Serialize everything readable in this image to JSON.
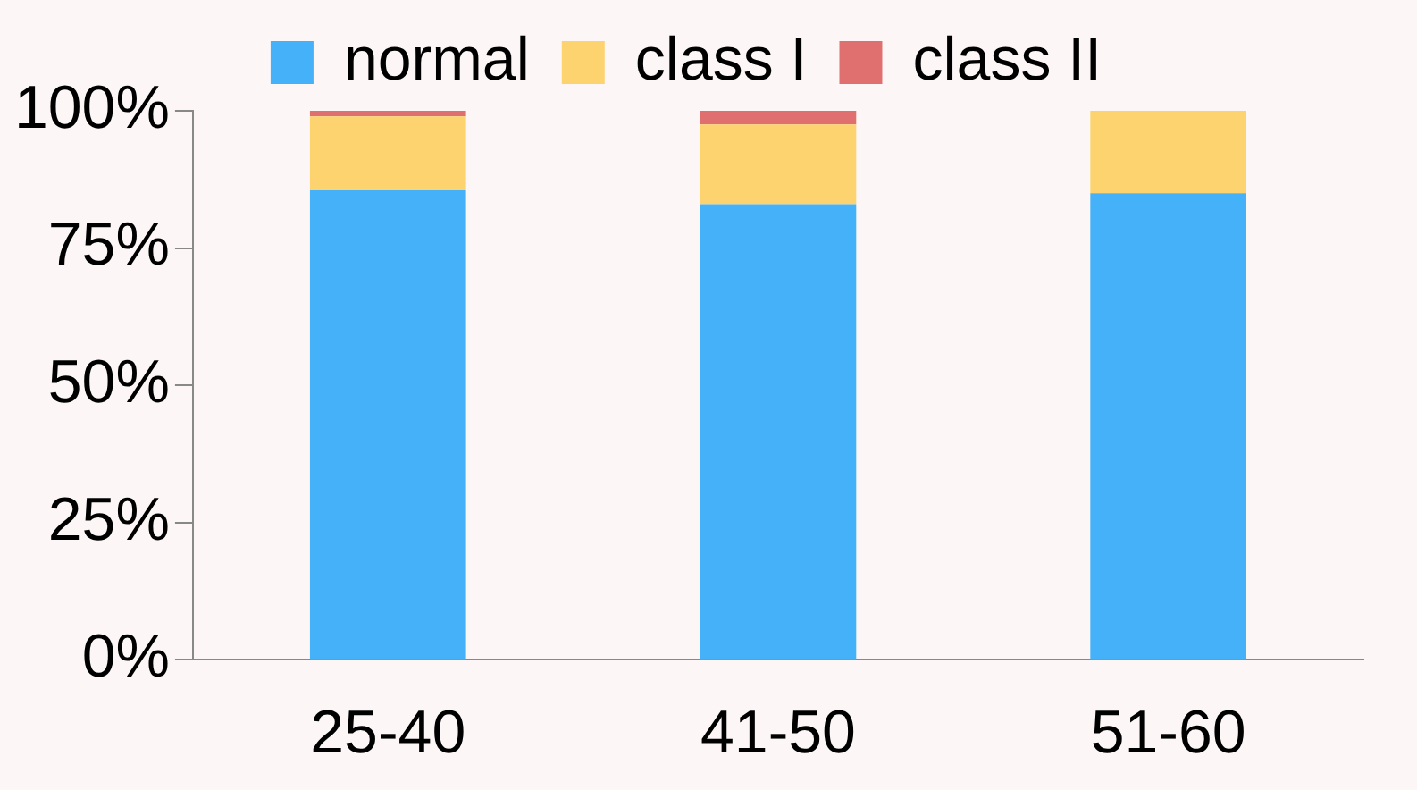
{
  "chart_data": {
    "type": "bar",
    "stacked": true,
    "categories": [
      "25-40",
      "41-50",
      "51-60"
    ],
    "series": [
      {
        "name": "normal",
        "color": "#45b1f8",
        "values": [
          85.5,
          83,
          85
        ]
      },
      {
        "name": "class I",
        "color": "#fcd36e",
        "values": [
          13.5,
          14.5,
          15
        ]
      },
      {
        "name": "class II",
        "color": "#e07070",
        "values": [
          1,
          2.5,
          0
        ]
      }
    ],
    "ylim": [
      0,
      100
    ],
    "yticks": [
      {
        "value": 0,
        "label": "0%"
      },
      {
        "value": 25,
        "label": "25%"
      },
      {
        "value": 50,
        "label": "50%"
      },
      {
        "value": 75,
        "label": "75%"
      },
      {
        "value": 100,
        "label": "100%"
      }
    ],
    "grid": false,
    "legend": "top"
  }
}
